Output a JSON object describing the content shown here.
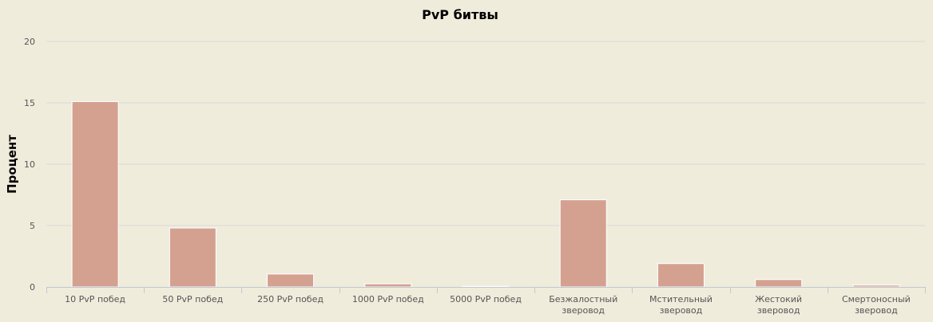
{
  "chart_data": {
    "type": "bar",
    "title": "PvP битвы",
    "xlabel": "",
    "ylabel": "Процент",
    "ylim": [
      0,
      20
    ],
    "yticks": [
      0,
      5,
      10,
      15,
      20
    ],
    "grid": true,
    "categories": [
      [
        "10 PvP побед"
      ],
      [
        "50 PvP побед"
      ],
      [
        "250 PvP побед"
      ],
      [
        "1000 PvP побед"
      ],
      [
        "5000 PvP побед"
      ],
      [
        "Безжалостный",
        "зверовод"
      ],
      [
        "Мстительный",
        "зверовод"
      ],
      [
        "Жестокий",
        "зверовод"
      ],
      [
        "Смертоносный",
        "зверовод"
      ]
    ],
    "values": [
      15.1,
      4.8,
      1.05,
      0.25,
      0.05,
      7.1,
      1.9,
      0.6,
      0.15
    ],
    "bar_color": "#d4a190"
  }
}
